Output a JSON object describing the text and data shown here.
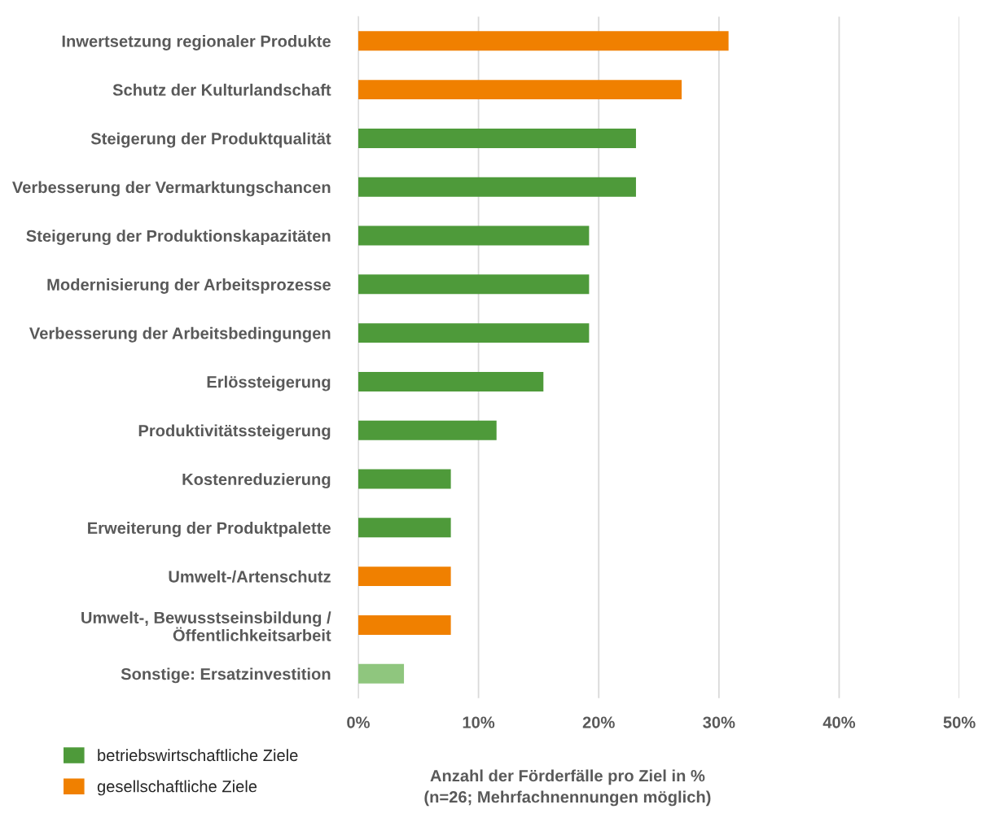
{
  "chart_data": {
    "type": "bar",
    "orientation": "horizontal",
    "xlabel": "Anzahl der Förderfälle pro Ziel in %\n(n=26; Mehrfachnennungen möglich)",
    "categories": [
      "Inwertsetzung regionaler Produkte",
      "Schutz der Kulturlandschaft",
      "Steigerung der Produktqualität",
      "Verbesserung der Vermarktungschancen",
      "Steigerung der Produktionskapazitäten",
      "Modernisierung der Arbeitsprozesse",
      "Verbesserung der Arbeitsbedingungen",
      "Erlössteigerung",
      "Produktivitätssteigerung",
      "Kostenreduzierung",
      "Erweiterung der Produktpalette",
      "Umwelt-/Artenschutz",
      "Umwelt-, Bewusstseinsbildung /\nÖffentlichkeitsarbeit",
      "Sonstige: Ersatzinvestition"
    ],
    "series": [
      {
        "name": "betriebswirtschaftliche Ziele",
        "color": "#4e9a3a",
        "values": [
          null,
          null,
          23.1,
          23.1,
          19.2,
          19.2,
          19.2,
          15.4,
          11.5,
          7.7,
          7.7,
          null,
          null,
          null
        ]
      },
      {
        "name": "gesellschaftliche Ziele",
        "color": "#f08000",
        "values": [
          30.8,
          26.9,
          null,
          null,
          null,
          null,
          null,
          null,
          null,
          null,
          null,
          7.7,
          7.7,
          null
        ]
      },
      {
        "color": "#8fc67e",
        "values": [
          null,
          null,
          null,
          null,
          null,
          null,
          null,
          null,
          null,
          null,
          null,
          null,
          null,
          3.8
        ]
      }
    ],
    "xlim": [
      0,
      50
    ],
    "xticks": [
      {
        "value": 0,
        "label": "0%"
      },
      {
        "value": 10,
        "label": "10%"
      },
      {
        "value": 20,
        "label": "20%"
      },
      {
        "value": 30,
        "label": "30%"
      },
      {
        "value": 40,
        "label": "40%"
      },
      {
        "value": 50,
        "label": "50%"
      }
    ],
    "grid": "x",
    "legend": "bottom left"
  }
}
